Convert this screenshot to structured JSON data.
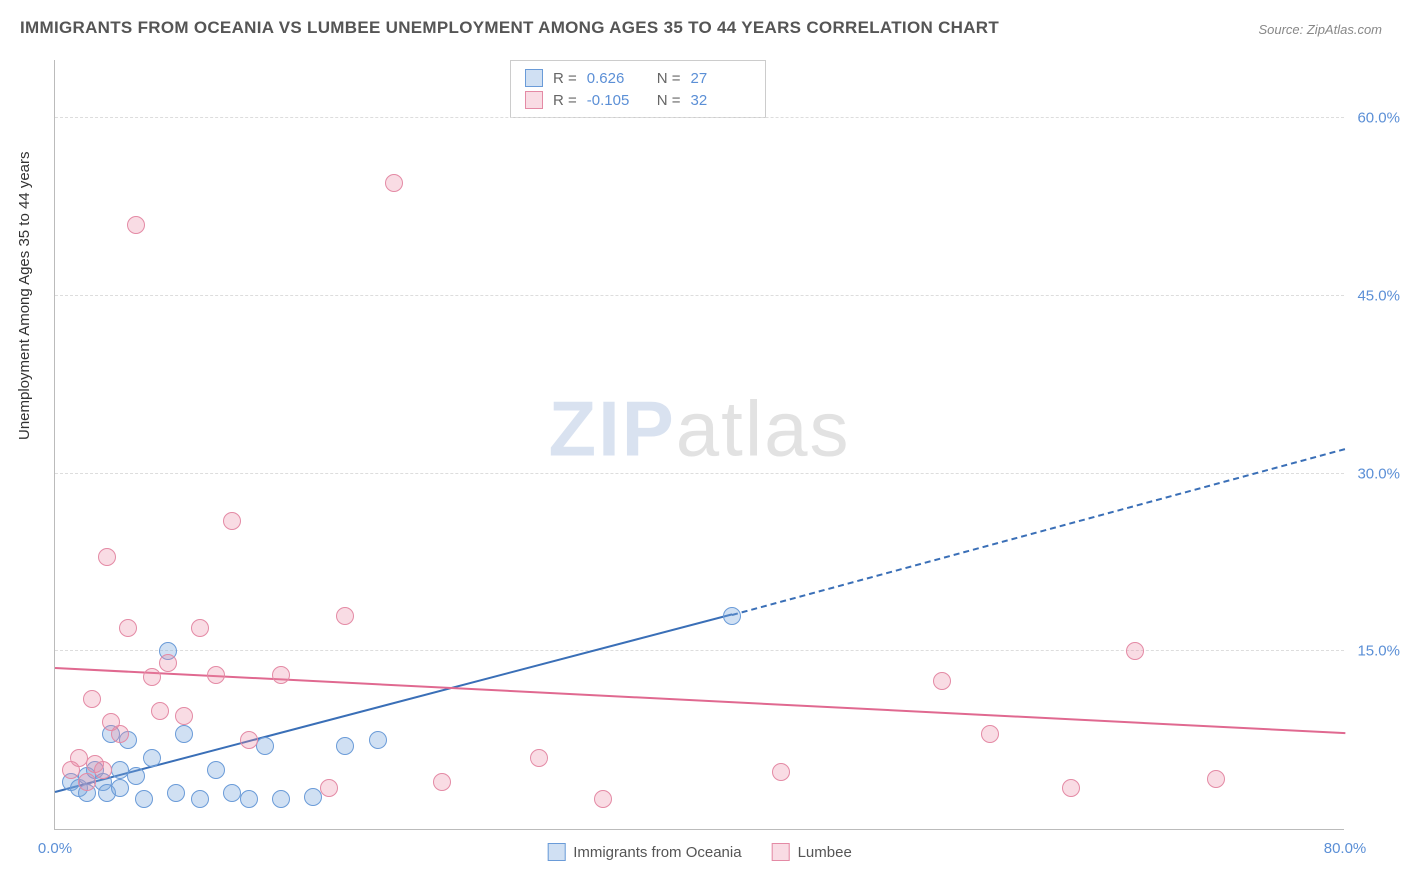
{
  "title": "IMMIGRANTS FROM OCEANIA VS LUMBEE UNEMPLOYMENT AMONG AGES 35 TO 44 YEARS CORRELATION CHART",
  "source": "Source: ZipAtlas.com",
  "ylabel": "Unemployment Among Ages 35 to 44 years",
  "watermark_bold": "ZIP",
  "watermark_thin": "atlas",
  "chart": {
    "type": "scatter",
    "xlim": [
      0,
      80
    ],
    "ylim": [
      0,
      65
    ],
    "xtick_labels": [
      "0.0%",
      "80.0%"
    ],
    "xtick_positions": [
      0,
      80
    ],
    "ytick_labels": [
      "15.0%",
      "30.0%",
      "45.0%",
      "60.0%"
    ],
    "ytick_positions": [
      15,
      30,
      45,
      60
    ],
    "grid_color": "#dddddd",
    "background_color": "#ffffff",
    "axis_color": "#bbbbbb",
    "tick_label_color": "#5b8fd6",
    "point_radius": 9,
    "series": [
      {
        "name": "Immigrants from Oceania",
        "fill": "rgba(120,165,220,0.35)",
        "stroke": "#6a9bd8",
        "line_color": "#3a6fb7",
        "r_label": "R =",
        "r_value": "0.626",
        "n_label": "N =",
        "n_value": "27",
        "trend": {
          "x1": 0,
          "y1": 3.0,
          "x2": 42,
          "y2": 18.0,
          "x2_dash": 80,
          "y2_dash": 32.0
        },
        "points": [
          [
            1,
            4
          ],
          [
            1.5,
            3.5
          ],
          [
            2,
            4.5
          ],
          [
            2,
            3
          ],
          [
            2.5,
            5
          ],
          [
            3,
            4
          ],
          [
            3.2,
            3
          ],
          [
            3.5,
            8
          ],
          [
            4,
            5
          ],
          [
            4,
            3.5
          ],
          [
            4.5,
            7.5
          ],
          [
            5,
            4.5
          ],
          [
            5.5,
            2.5
          ],
          [
            6,
            6
          ],
          [
            7,
            15
          ],
          [
            7.5,
            3
          ],
          [
            8,
            8
          ],
          [
            9,
            2.5
          ],
          [
            10,
            5
          ],
          [
            11,
            3
          ],
          [
            12,
            2.5
          ],
          [
            13,
            7
          ],
          [
            14,
            2.5
          ],
          [
            16,
            2.7
          ],
          [
            18,
            7
          ],
          [
            20,
            7.5
          ],
          [
            42,
            18
          ]
        ]
      },
      {
        "name": "Lumbee",
        "fill": "rgba(235,140,165,0.30)",
        "stroke": "#e48aa5",
        "line_color": "#e06990",
        "r_label": "R =",
        "r_value": "-0.105",
        "n_label": "N =",
        "n_value": "32",
        "trend": {
          "x1": 0,
          "y1": 13.5,
          "x2": 80,
          "y2": 8.0
        },
        "points": [
          [
            1,
            5
          ],
          [
            1.5,
            6
          ],
          [
            2,
            4
          ],
          [
            2.3,
            11
          ],
          [
            2.5,
            5.5
          ],
          [
            3,
            5
          ],
          [
            3.2,
            23
          ],
          [
            3.5,
            9
          ],
          [
            4,
            8
          ],
          [
            4.5,
            17
          ],
          [
            5,
            51
          ],
          [
            6,
            12.8
          ],
          [
            6.5,
            10
          ],
          [
            7,
            14
          ],
          [
            8,
            9.5
          ],
          [
            9,
            17
          ],
          [
            10,
            13
          ],
          [
            11,
            26
          ],
          [
            12,
            7.5
          ],
          [
            14,
            13
          ],
          [
            17,
            3.5
          ],
          [
            18,
            18
          ],
          [
            21,
            54.5
          ],
          [
            24,
            4
          ],
          [
            30,
            6
          ],
          [
            34,
            2.5
          ],
          [
            45,
            4.8
          ],
          [
            55,
            12.5
          ],
          [
            58,
            8
          ],
          [
            63,
            3.5
          ],
          [
            67,
            15
          ],
          [
            72,
            4.2
          ]
        ]
      }
    ],
    "legend_bottom": [
      {
        "label": "Immigrants from Oceania",
        "fill": "rgba(120,165,220,0.35)",
        "stroke": "#6a9bd8"
      },
      {
        "label": "Lumbee",
        "fill": "rgba(235,140,165,0.30)",
        "stroke": "#e48aa5"
      }
    ]
  }
}
